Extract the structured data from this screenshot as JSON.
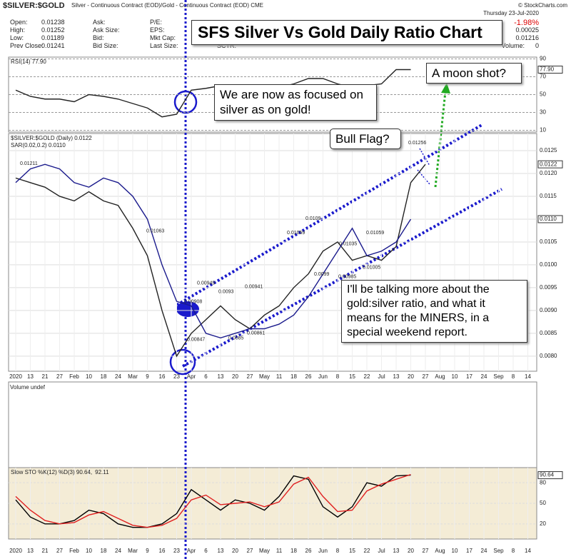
{
  "header": {
    "symbol": "$SILVER:$GOLD",
    "description": "Silver - Continuous Contract (EOD)/Gold - Continuous Contract (EOD) CME",
    "source": "© StockCharts.com",
    "date": "Thursday 23-Jul-2020",
    "quote": [
      [
        "Open:",
        "0.01238",
        "Ask:",
        "P/E:"
      ],
      [
        "High:",
        "0.01252",
        "Ask Size:",
        "EPS:"
      ],
      [
        "Low:",
        "0.01189",
        "Bid:",
        "Mkt Cap:"
      ],
      [
        "Prev Close:",
        "0.01241",
        "Bid Size:",
        "Last Size:",
        "SCTR:"
      ]
    ],
    "right": [
      "-1.98%",
      "0.00025",
      "0.01216",
      "Volume:",
      "0"
    ]
  },
  "annotations": {
    "title": "SFS Silver Vs Gold Daily Ratio Chart",
    "focus": "We are now as focused on silver as on gold!",
    "moon": "A moon shot?",
    "flag": "Bull Flag?",
    "report": "I'll be talking more about the gold:silver ratio, and what it means for the MINERS, in a special weekend report."
  },
  "volume_panel": {
    "label": "Volume undef"
  },
  "chart_data": [
    {
      "type": "line",
      "categories": [
        "2020",
        "13",
        "21",
        "27",
        "Feb",
        "10",
        "18",
        "24",
        "Mar",
        "9",
        "16",
        "23",
        "Apr",
        "6",
        "13",
        "20",
        "27",
        "May",
        "11",
        "18",
        "26",
        "Jun",
        "8",
        "15",
        "22",
        "Jul",
        "13",
        "20",
        "27",
        "Aug",
        "10",
        "17",
        "24",
        "Sep",
        "8",
        "14"
      ],
      "series": [
        {
          "name": "$SILVER:$GOLD (Daily) 0.0122",
          "color": "#222222",
          "values": [
            0.0119,
            0.0118,
            0.0117,
            0.0115,
            0.0114,
            0.0116,
            0.0114,
            0.0113,
            0.0108,
            0.0102,
            0.009,
            0.008,
            0.0085,
            0.0088,
            0.0091,
            0.0088,
            0.0086,
            0.0089,
            0.0091,
            0.0095,
            0.0098,
            0.0103,
            0.0105,
            0.0101,
            0.0102,
            0.0101,
            0.0104,
            0.0118,
            0.0122,
            null,
            null,
            null,
            null,
            null,
            null,
            null
          ]
        },
        {
          "name": "SAR(0.02,0.2) 0.0110",
          "color": "#1a1a8c",
          "values": [
            0.0118,
            0.0121,
            0.0122,
            0.0121,
            0.0118,
            0.0117,
            0.0119,
            0.0118,
            0.0115,
            0.011,
            0.01,
            0.0092,
            0.0091,
            0.0085,
            0.0084,
            0.0085,
            0.0086,
            0.0086,
            0.0087,
            0.0089,
            0.0093,
            0.0098,
            0.0103,
            0.0108,
            0.0102,
            0.0103,
            0.0105,
            0.011,
            null,
            null,
            null,
            null,
            null,
            null,
            null,
            null
          ]
        }
      ],
      "last_labels": [
        "0.0122",
        "0.0110"
      ],
      "point_labels": [
        0.01211,
        0.01063,
        0.00908,
        0.00949,
        0.00847,
        0.0093,
        0.0085,
        0.00941,
        0.00861,
        0.01059,
        0.0109,
        0.0099,
        0.01035,
        0.00985,
        0.01059,
        0.01005,
        0.01256
      ],
      "ylim": [
        0.00767,
        0.012875
      ],
      "yticks": [
        {
          "value": 0.008,
          "label": "0.0080"
        },
        {
          "value": 0.0085,
          "label": "0.0085"
        },
        {
          "value": 0.009,
          "label": "0.0090"
        },
        {
          "value": 0.0095,
          "label": "0.0095"
        },
        {
          "value": 0.01,
          "label": "0.0100"
        },
        {
          "value": 0.0105,
          "label": "0.0105"
        },
        {
          "value": 0.011,
          "label": "0.0110"
        },
        {
          "value": 0.0115,
          "label": "0.0115"
        },
        {
          "value": 0.012,
          "label": "0.0120"
        },
        {
          "value": 0.0125,
          "label": "0.0125"
        }
      ],
      "grid": true
    },
    {
      "type": "line",
      "series": [
        {
          "name": "RSI(14) 77.90",
          "color": "#222222",
          "values": [
            55,
            48,
            45,
            45,
            42,
            50,
            48,
            45,
            40,
            35,
            25,
            28,
            55,
            57,
            60,
            55,
            52,
            57,
            58,
            62,
            68,
            68,
            62,
            58,
            60,
            62,
            78,
            78,
            null,
            null,
            null,
            null,
            null,
            null,
            null,
            null
          ]
        }
      ],
      "last_labels": [
        "77.90"
      ],
      "ylim": [
        8,
        92
      ],
      "yticks": [
        10,
        30,
        50,
        70,
        90
      ],
      "grid": true
    },
    {
      "type": "line",
      "categories": [
        "2020",
        "13",
        "21",
        "27",
        "Feb",
        "10",
        "18",
        "24",
        "Mar",
        "9",
        "16",
        "23",
        "Apr",
        "6",
        "13",
        "20",
        "27",
        "May",
        "11",
        "18",
        "26",
        "Jun",
        "8",
        "15",
        "22",
        "Jul",
        "13",
        "20",
        "27",
        "Aug",
        "10",
        "17",
        "24",
        "Sep",
        "8",
        "14"
      ],
      "series": [
        {
          "name": "Slow STO %K(12) %D(3) 90.64,",
          "color": "#000000",
          "values": [
            55,
            30,
            20,
            20,
            25,
            40,
            35,
            20,
            15,
            15,
            20,
            35,
            70,
            55,
            40,
            55,
            50,
            40,
            60,
            90,
            85,
            45,
            30,
            45,
            80,
            75,
            90,
            91,
            null,
            null,
            null,
            null,
            null,
            null,
            null,
            null
          ]
        },
        {
          "name": "92.11",
          "color": "#e02020",
          "values": [
            60,
            40,
            25,
            20,
            22,
            33,
            38,
            28,
            18,
            15,
            18,
            28,
            55,
            62,
            48,
            50,
            52,
            45,
            52,
            78,
            88,
            60,
            38,
            40,
            68,
            78,
            85,
            92,
            null,
            null,
            null,
            null,
            null,
            null,
            null,
            null
          ]
        }
      ],
      "last_labels": [
        "90.64"
      ],
      "ylim": [
        -2,
        102
      ],
      "yticks": [
        20,
        50,
        80
      ],
      "grid": true
    }
  ]
}
